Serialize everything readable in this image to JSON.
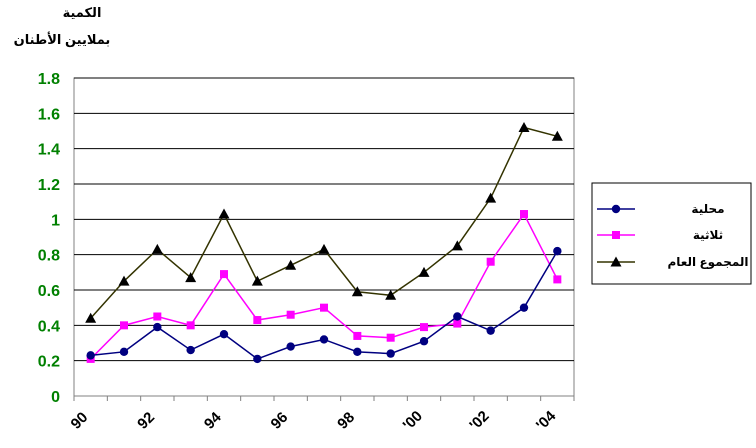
{
  "chart_data": {
    "type": "line",
    "ylabel_lines": [
      "الكمية",
      "بملايين الأطنان"
    ],
    "x_tick_labels": [
      "90",
      "92",
      "94",
      "96",
      "98",
      "'00",
      "'02",
      "'04"
    ],
    "x": [
      1990,
      1991,
      1992,
      1993,
      1994,
      1995,
      1996,
      1997,
      1998,
      1999,
      2000,
      2001,
      2002,
      2003,
      2004
    ],
    "ylim": [
      0,
      1.8
    ],
    "y_ticks": [
      "0",
      "0.2",
      "0.4",
      "0.6",
      "0.8",
      "1",
      "1.2",
      "1.4",
      "1.6",
      "1.8"
    ],
    "grid": "horizontal",
    "legend_position": "right",
    "series": [
      {
        "name": "محلية",
        "color": "#000080",
        "marker": "circle",
        "values": [
          0.23,
          0.25,
          0.39,
          0.26,
          0.35,
          0.21,
          0.28,
          0.32,
          0.25,
          0.24,
          0.31,
          0.45,
          0.37,
          0.5,
          0.82
        ]
      },
      {
        "name": "ثلاثية",
        "color": "#FF00FF",
        "marker": "square",
        "values": [
          0.21,
          0.4,
          0.45,
          0.4,
          0.69,
          0.43,
          0.46,
          0.5,
          0.34,
          0.33,
          0.39,
          0.41,
          0.76,
          1.03,
          0.66
        ]
      },
      {
        "name": "المجموع العام",
        "color": "#333300",
        "marker": "triangle",
        "values": [
          0.44,
          0.65,
          0.83,
          0.67,
          1.03,
          0.65,
          0.74,
          0.83,
          0.59,
          0.57,
          0.7,
          0.85,
          1.12,
          1.52,
          1.47
        ]
      }
    ]
  }
}
